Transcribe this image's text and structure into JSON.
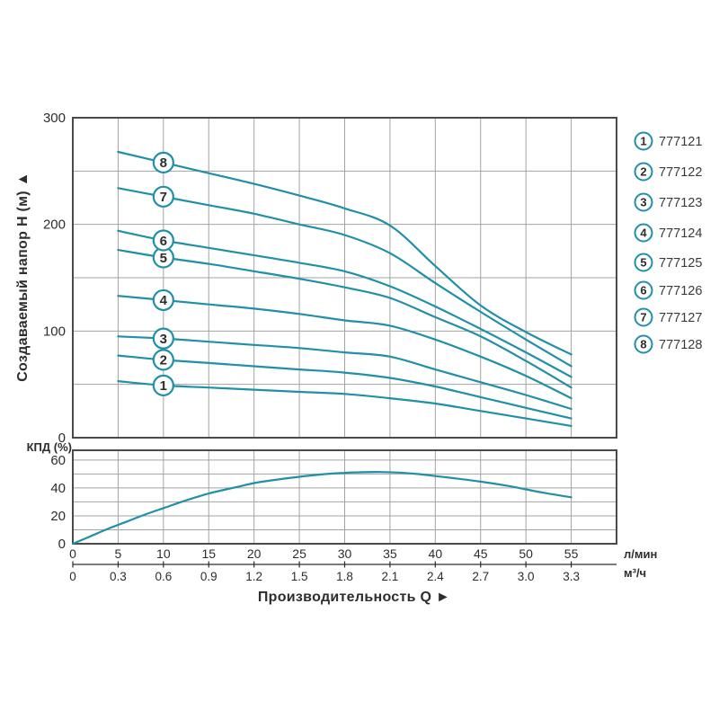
{
  "colors": {
    "curve": "#2090a8",
    "grid": "#a3a3a3",
    "plot_border": "#4a4a4a",
    "text": "#2d2d2d",
    "legend_text": "#3a3a3a",
    "background": "#ffffff"
  },
  "main_chart": {
    "y_axis_title": "Создаваемый напор H (м) ▲",
    "y_ticks": [
      "0",
      "100",
      "200",
      "300"
    ]
  },
  "efficiency_chart": {
    "label": "КПД (%)",
    "y_ticks": [
      "0",
      "20",
      "40",
      "60"
    ]
  },
  "x_axis": {
    "lmin_ticks": [
      "0",
      "5",
      "10",
      "15",
      "20",
      "25",
      "30",
      "35",
      "40",
      "45",
      "50",
      "55"
    ],
    "lmin_unit": "л/мин",
    "m3h_ticks": [
      "0",
      "0.3",
      "0.6",
      "0.9",
      "1.2",
      "1.5",
      "1.8",
      "2.1",
      "2.4",
      "2.7",
      "3.0",
      "3.3"
    ],
    "m3h_unit": "м³/ч",
    "title": "Производительность Q ►"
  },
  "legend": {
    "items": [
      {
        "num": "1",
        "code": "777121"
      },
      {
        "num": "2",
        "code": "777122"
      },
      {
        "num": "3",
        "code": "777123"
      },
      {
        "num": "4",
        "code": "777124"
      },
      {
        "num": "5",
        "code": "777125"
      },
      {
        "num": "6",
        "code": "777126"
      },
      {
        "num": "7",
        "code": "777127"
      },
      {
        "num": "8",
        "code": "777128"
      }
    ]
  },
  "chart_data": [
    {
      "type": "line",
      "title": "",
      "xlabel": "Производительность Q",
      "ylabel": "Создаваемый напор H (м)",
      "xlim": [
        0,
        60
      ],
      "ylim": [
        0,
        300
      ],
      "x_units": [
        "л/мин",
        "м³/ч"
      ],
      "x_unit_ratio": "1 м³/ч = 16.67 л/мин (labels 0.3 align with 5 л/мин)",
      "grid": true,
      "legend_position": "right",
      "marker_note": "each curve labeled with circled number at Q=10 л/мин",
      "series": [
        {
          "name": "1",
          "model": "777121",
          "points": [
            [
              5,
              53
            ],
            [
              10,
              49
            ],
            [
              15,
              47
            ],
            [
              20,
              45
            ],
            [
              25,
              43
            ],
            [
              30,
              41
            ],
            [
              35,
              37
            ],
            [
              40,
              32
            ],
            [
              45,
              25
            ],
            [
              50,
              18
            ],
            [
              55,
              11
            ]
          ]
        },
        {
          "name": "2",
          "model": "777122",
          "points": [
            [
              5,
              77
            ],
            [
              10,
              73
            ],
            [
              15,
              70
            ],
            [
              20,
              67
            ],
            [
              25,
              64
            ],
            [
              30,
              61
            ],
            [
              35,
              56
            ],
            [
              40,
              48
            ],
            [
              45,
              38
            ],
            [
              50,
              28
            ],
            [
              55,
              18
            ]
          ]
        },
        {
          "name": "3",
          "model": "777123",
          "points": [
            [
              5,
              95
            ],
            [
              10,
              93
            ],
            [
              15,
              90
            ],
            [
              20,
              87
            ],
            [
              25,
              84
            ],
            [
              30,
              80
            ],
            [
              35,
              76
            ],
            [
              40,
              64
            ],
            [
              45,
              52
            ],
            [
              50,
              40
            ],
            [
              55,
              27
            ]
          ]
        },
        {
          "name": "4",
          "model": "777124",
          "points": [
            [
              5,
              133
            ],
            [
              10,
              129
            ],
            [
              15,
              125
            ],
            [
              20,
              121
            ],
            [
              25,
              116
            ],
            [
              30,
              110
            ],
            [
              35,
              105
            ],
            [
              40,
              92
            ],
            [
              45,
              76
            ],
            [
              50,
              58
            ],
            [
              55,
              37
            ]
          ]
        },
        {
          "name": "5",
          "model": "777125",
          "points": [
            [
              5,
              176
            ],
            [
              10,
              169
            ],
            [
              15,
              163
            ],
            [
              20,
              156
            ],
            [
              25,
              149
            ],
            [
              30,
              141
            ],
            [
              35,
              131
            ],
            [
              40,
              113
            ],
            [
              45,
              95
            ],
            [
              50,
              72
            ],
            [
              55,
              47
            ]
          ]
        },
        {
          "name": "6",
          "model": "777126",
          "points": [
            [
              5,
              194
            ],
            [
              10,
              185
            ],
            [
              15,
              178
            ],
            [
              20,
              171
            ],
            [
              25,
              164
            ],
            [
              30,
              156
            ],
            [
              35,
              142
            ],
            [
              40,
              123
            ],
            [
              45,
              102
            ],
            [
              50,
              80
            ],
            [
              55,
              57
            ]
          ]
        },
        {
          "name": "7",
          "model": "777127",
          "points": [
            [
              5,
              234
            ],
            [
              10,
              226
            ],
            [
              15,
              218
            ],
            [
              20,
              210
            ],
            [
              25,
              200
            ],
            [
              30,
              190
            ],
            [
              35,
              173
            ],
            [
              40,
              145
            ],
            [
              45,
              118
            ],
            [
              50,
              92
            ],
            [
              55,
              67
            ]
          ]
        },
        {
          "name": "8",
          "model": "777128",
          "points": [
            [
              5,
              268
            ],
            [
              10,
              258
            ],
            [
              15,
              248
            ],
            [
              20,
              238
            ],
            [
              25,
              227
            ],
            [
              30,
              215
            ],
            [
              35,
              199
            ],
            [
              40,
              161
            ],
            [
              45,
              124
            ],
            [
              50,
              99
            ],
            [
              55,
              78
            ]
          ]
        }
      ]
    },
    {
      "type": "line",
      "title": "",
      "xlabel": "Производительность Q",
      "ylabel": "КПД (%)",
      "xlim": [
        0,
        60
      ],
      "ylim": [
        0,
        67
      ],
      "grid": true,
      "series": [
        {
          "name": "КПД",
          "points": [
            [
              0,
              0
            ],
            [
              2,
              5.5
            ],
            [
              4,
              11
            ],
            [
              6,
              16
            ],
            [
              8,
              21
            ],
            [
              10,
              25.5
            ],
            [
              12,
              30
            ],
            [
              15,
              36
            ],
            [
              18,
              40.5
            ],
            [
              20,
              43.5
            ],
            [
              22,
              45.5
            ],
            [
              25,
              48
            ],
            [
              28,
              50
            ],
            [
              30,
              50.8
            ],
            [
              32,
              51.3
            ],
            [
              34,
              51.4
            ],
            [
              36,
              51
            ],
            [
              38,
              50
            ],
            [
              40,
              48.5
            ],
            [
              42,
              47
            ],
            [
              45,
              44.5
            ],
            [
              48,
              41.5
            ],
            [
              50,
              39
            ],
            [
              52,
              36.5
            ],
            [
              55,
              33.3
            ]
          ]
        }
      ]
    }
  ]
}
